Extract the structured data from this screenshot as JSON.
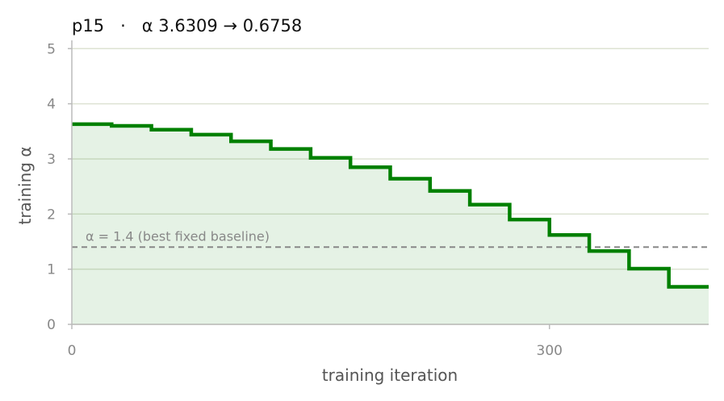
{
  "chart_data": {
    "type": "line",
    "title": "p15   ·   α 3.6309 → 0.6758",
    "xlabel": "training iteration",
    "ylabel": "training α",
    "xlim": [
      0,
      400
    ],
    "ylim": [
      0,
      5.15
    ],
    "x_ticks": [
      0,
      300
    ],
    "x_tick_labels": [
      "0",
      "300"
    ],
    "y_ticks": [
      0,
      1,
      2,
      3,
      4,
      5
    ],
    "y_tick_labels": [
      "0",
      "1",
      "2",
      "3",
      "4",
      "5"
    ],
    "grid": "horizontal",
    "step": "post",
    "fill_under": true,
    "series": [
      {
        "color": "#008000",
        "x": [
          0,
          25,
          50,
          75,
          100,
          125,
          150,
          175,
          200,
          225,
          250,
          275,
          300,
          325,
          350,
          375,
          400
        ],
        "values": [
          3.63,
          3.6,
          3.53,
          3.44,
          3.32,
          3.18,
          3.02,
          2.85,
          2.64,
          2.42,
          2.17,
          1.9,
          1.62,
          1.33,
          1.01,
          0.68,
          0.68
        ]
      }
    ],
    "reference_line": {
      "y": 1.4,
      "label": "α = 1.4 (best fixed baseline)",
      "color": "#888888",
      "style": "dashed"
    }
  }
}
